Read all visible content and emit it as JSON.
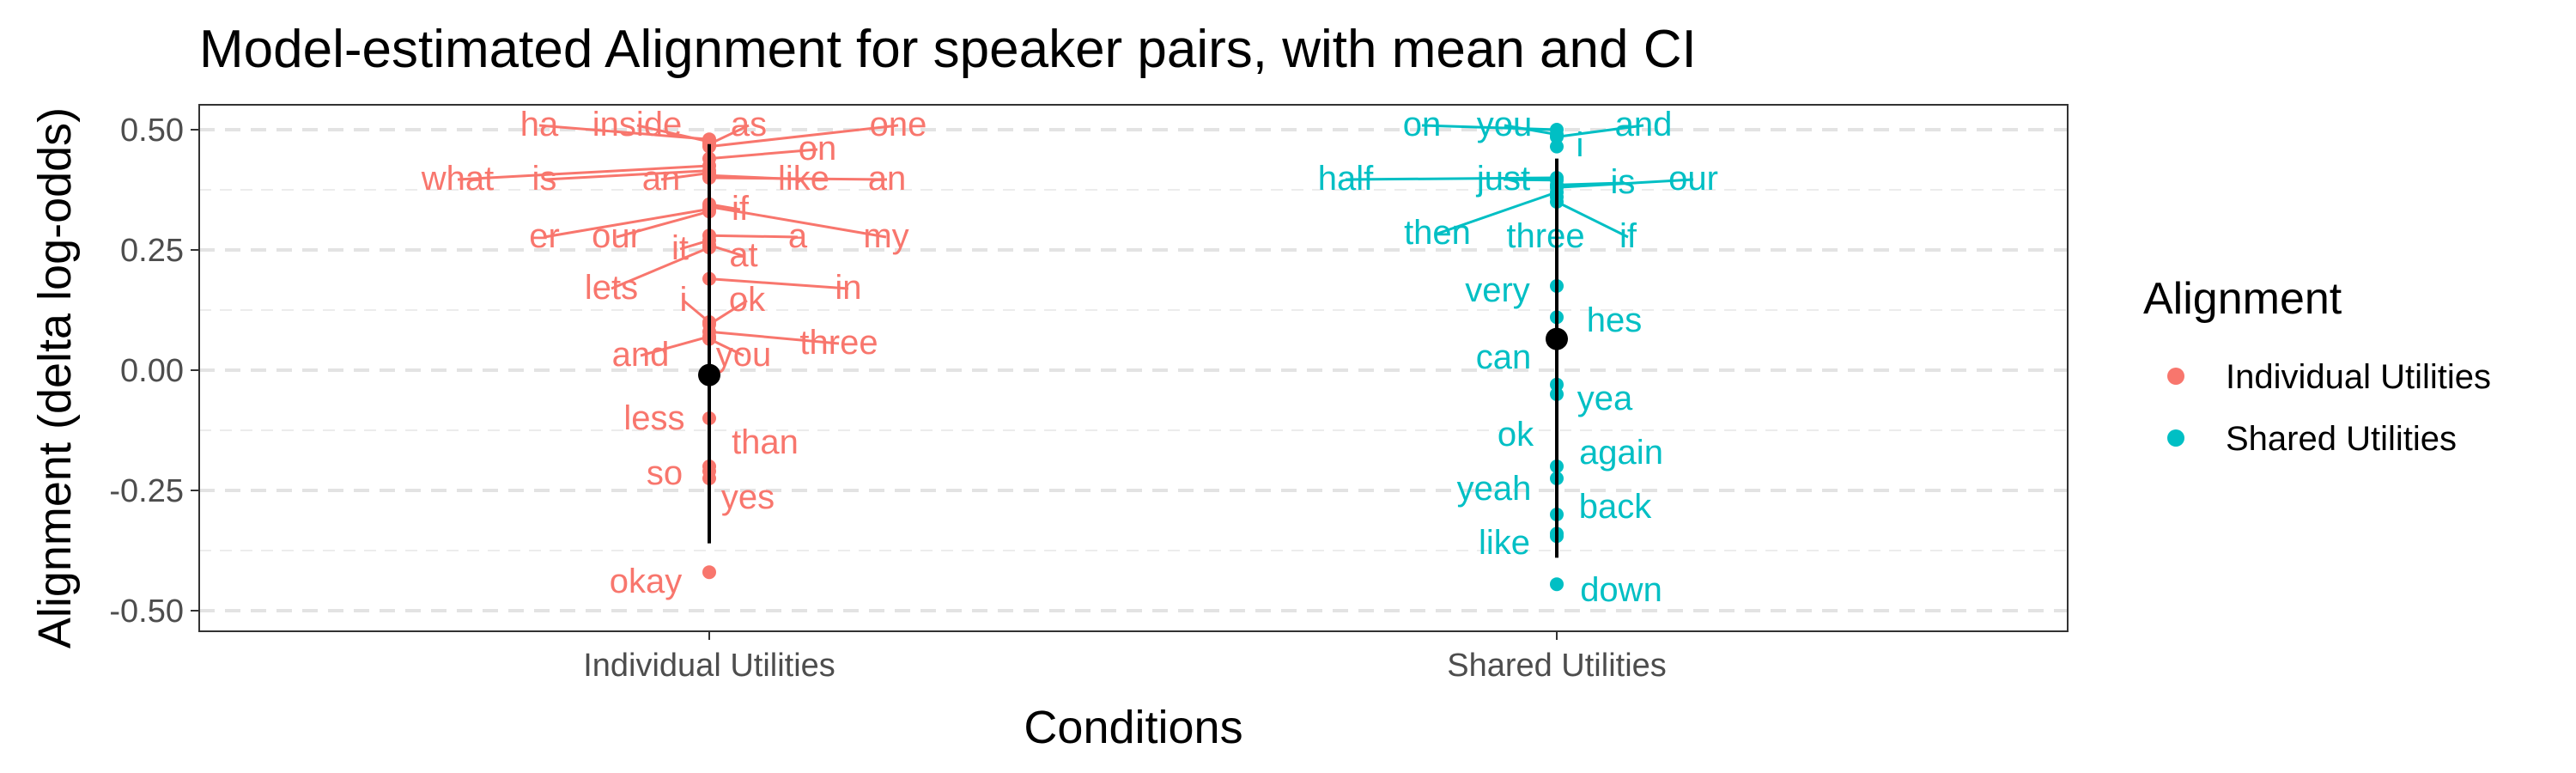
{
  "chart_data": {
    "type": "scatter",
    "title": "Model-estimated Alignment for speaker pairs, with mean and CI",
    "xlabel": "Conditions",
    "ylabel": "Alignment (delta log-odds)",
    "categories": [
      "Individual Utilities",
      "Shared Utilities"
    ],
    "ylim": [
      -0.54,
      0.55
    ],
    "yticks": [
      "0.50",
      "0.25",
      "0.00",
      "-0.25",
      "-0.50"
    ],
    "grid": true,
    "legend": {
      "title": "Alignment",
      "position": "right",
      "entries": [
        "Individual Utilities",
        "Shared Utilities"
      ]
    },
    "colors": {
      "Individual Utilities": "#F8766D",
      "Shared Utilities": "#00BFC4",
      "mean": "#000000"
    },
    "summary": [
      {
        "category": "Individual Utilities",
        "mean": -0.01,
        "ci": [
          -0.36,
          0.47
        ]
      },
      {
        "category": "Shared Utilities",
        "mean": 0.065,
        "ci": [
          -0.39,
          0.44
        ]
      }
    ],
    "series": [
      {
        "name": "Individual Utilities",
        "points": [
          {
            "word": "ha",
            "y": 0.48
          },
          {
            "word": "inside",
            "y": 0.475
          },
          {
            "word": "as",
            "y": 0.47
          },
          {
            "word": "one",
            "y": 0.465
          },
          {
            "word": "on",
            "y": 0.44
          },
          {
            "word": "what",
            "y": 0.425
          },
          {
            "word": "is",
            "y": 0.415
          },
          {
            "word": "an",
            "y": 0.41
          },
          {
            "word": "like",
            "y": 0.405
          },
          {
            "word": "an",
            "y": 0.4
          },
          {
            "word": "if",
            "y": 0.345
          },
          {
            "word": "my",
            "y": 0.34
          },
          {
            "word": "er",
            "y": 0.335
          },
          {
            "word": "our",
            "y": 0.33
          },
          {
            "word": "a",
            "y": 0.28
          },
          {
            "word": "it",
            "y": 0.27
          },
          {
            "word": "at",
            "y": 0.26
          },
          {
            "word": "lets",
            "y": 0.255
          },
          {
            "word": "in",
            "y": 0.19
          },
          {
            "word": "i",
            "y": 0.1
          },
          {
            "word": "ok",
            "y": 0.095
          },
          {
            "word": "three",
            "y": 0.08
          },
          {
            "word": "and",
            "y": 0.07
          },
          {
            "word": "you",
            "y": 0.065
          },
          {
            "word": "less",
            "y": -0.1
          },
          {
            "word": "than",
            "y": -0.2
          },
          {
            "word": "so",
            "y": -0.21
          },
          {
            "word": "yes",
            "y": -0.225
          },
          {
            "word": "okay",
            "y": -0.42
          }
        ]
      },
      {
        "name": "Shared Utilities",
        "points": [
          {
            "word": "on",
            "y": 0.5
          },
          {
            "word": "you",
            "y": 0.49
          },
          {
            "word": "and",
            "y": 0.485
          },
          {
            "word": "i",
            "y": 0.465
          },
          {
            "word": "half",
            "y": 0.4
          },
          {
            "word": "just",
            "y": 0.395
          },
          {
            "word": "is",
            "y": 0.385
          },
          {
            "word": "our",
            "y": 0.38
          },
          {
            "word": "then",
            "y": 0.37
          },
          {
            "word": "three",
            "y": 0.36
          },
          {
            "word": "if",
            "y": 0.35
          },
          {
            "word": "very",
            "y": 0.175
          },
          {
            "word": "hes",
            "y": 0.11
          },
          {
            "word": "can",
            "y": -0.03
          },
          {
            "word": "yea",
            "y": -0.05
          },
          {
            "word": "ok",
            "y": -0.2
          },
          {
            "word": "again",
            "y": -0.225
          },
          {
            "word": "yeah",
            "y": -0.3
          },
          {
            "word": "back",
            "y": -0.34
          },
          {
            "word": "like",
            "y": -0.345
          },
          {
            "word": "down",
            "y": -0.445
          }
        ]
      }
    ]
  }
}
